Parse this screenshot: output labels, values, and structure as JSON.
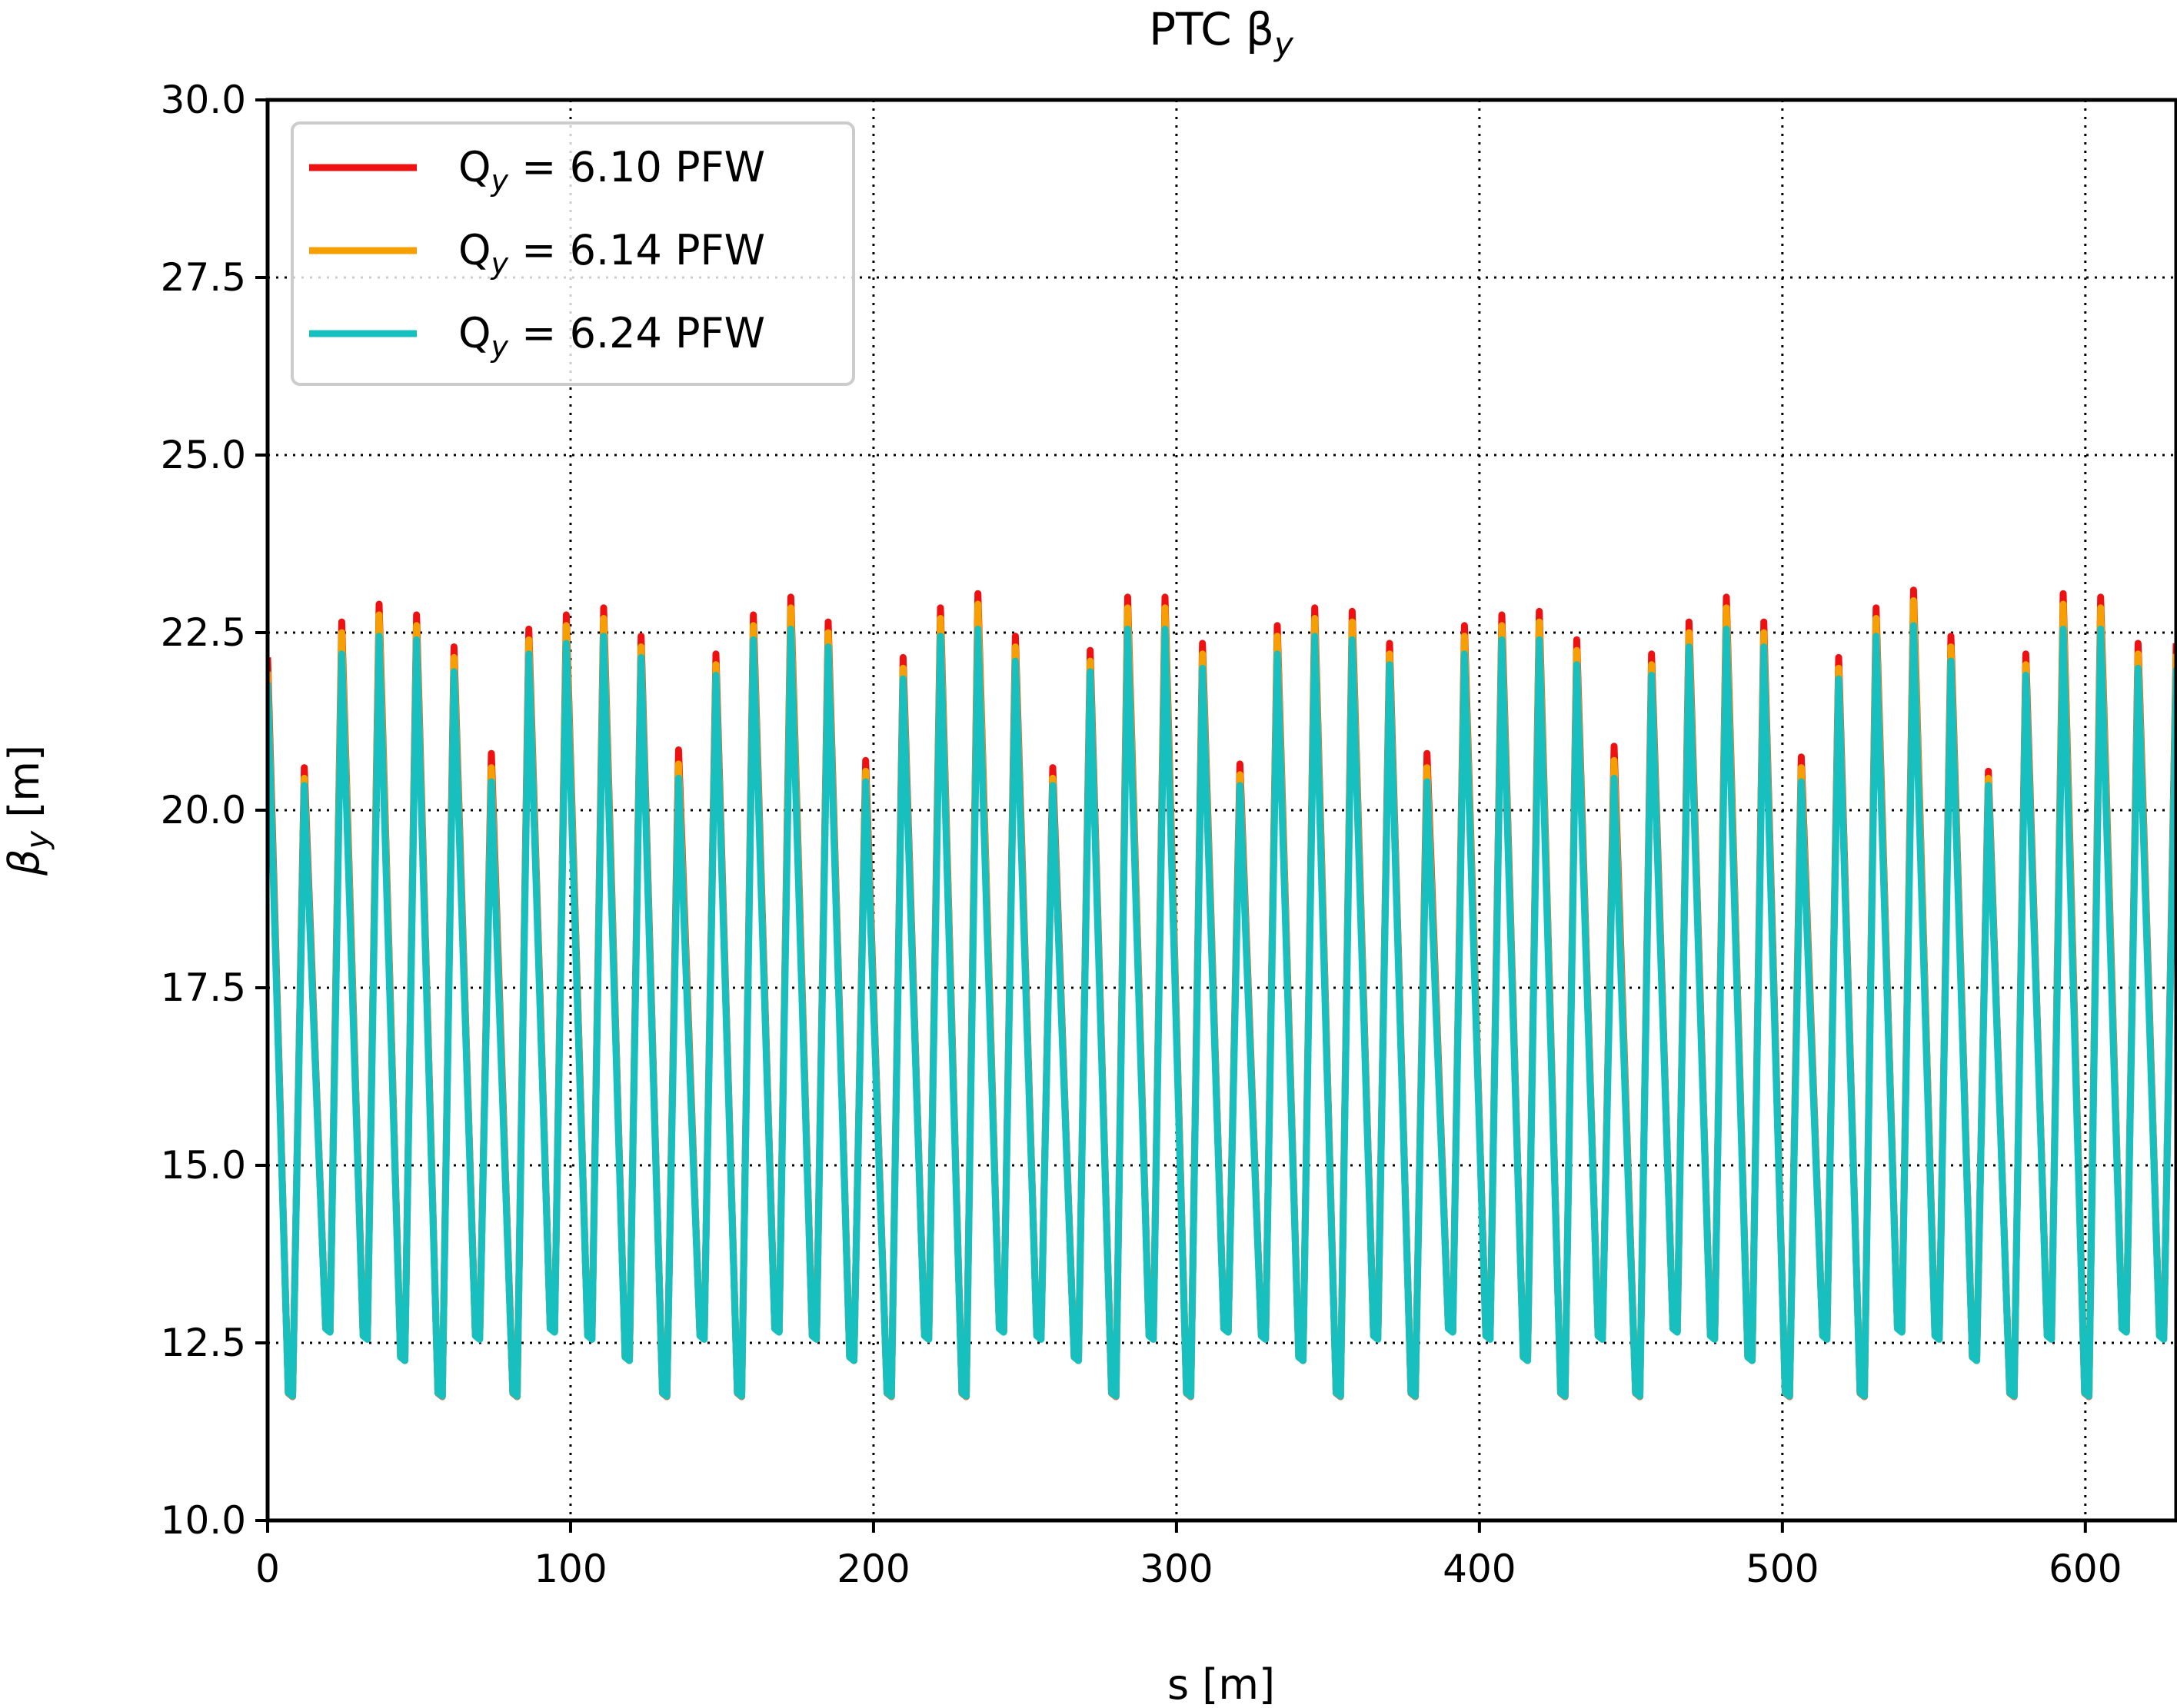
{
  "chart_data": {
    "type": "line",
    "title": "PTC β",
    "title_sub": "y",
    "xlabel": "s [m]",
    "ylabel": "β",
    "ylabel_sub": "y",
    "ylabel_unit": " [m]",
    "xlim": [
      0,
      630
    ],
    "ylim": [
      10.0,
      30.0
    ],
    "xticks": [
      0,
      100,
      200,
      300,
      400,
      500,
      600
    ],
    "yticks": [
      "10.0",
      "12.5",
      "15.0",
      "17.5",
      "20.0",
      "22.5",
      "25.0",
      "27.5",
      "30.0"
    ],
    "grid": true,
    "legend_position": "top-left",
    "period_s": 11.0,
    "min_beta": [
      11.8,
      12.7,
      12.6,
      12.3,
      11.8,
      12.6
    ],
    "max_beta_first": [
      22.0,
      20.4,
      22.1
    ],
    "series": [
      {
        "name": "Q",
        "name_sub": "y",
        "name_rest": " = 6.10 PFW",
        "color": "#ee1111",
        "scale": 1.02,
        "peaks": [
          22.15,
          20.6,
          22.65,
          22.9,
          22.75,
          22.3,
          20.8,
          22.55,
          22.75,
          22.85,
          22.45,
          20.85,
          22.2,
          22.75,
          23.0,
          22.65,
          20.7,
          22.15,
          22.85,
          23.05,
          22.45,
          20.6,
          22.25,
          23.0,
          23.0,
          22.35,
          20.65,
          22.6,
          22.85,
          22.8,
          22.35,
          20.8,
          22.6,
          22.75,
          22.8,
          22.4,
          20.9,
          22.2,
          22.65,
          23.0,
          22.65,
          20.75,
          22.15,
          22.85,
          23.1,
          22.45,
          20.55,
          22.2,
          23.05,
          23.0,
          22.35
        ]
      },
      {
        "name": "Q",
        "name_sub": "y",
        "name_rest": " = 6.14 PFW",
        "color": "#f5a000",
        "scale": 1.01,
        "peaks": [
          21.95,
          20.45,
          22.5,
          22.75,
          22.6,
          22.15,
          20.6,
          22.4,
          22.6,
          22.7,
          22.3,
          20.65,
          22.05,
          22.6,
          22.85,
          22.5,
          20.55,
          22.0,
          22.7,
          22.9,
          22.3,
          20.45,
          22.1,
          22.85,
          22.85,
          22.2,
          20.5,
          22.45,
          22.7,
          22.65,
          22.2,
          20.6,
          22.45,
          22.6,
          22.65,
          22.25,
          20.7,
          22.05,
          22.5,
          22.85,
          22.5,
          20.6,
          22.0,
          22.7,
          22.95,
          22.3,
          20.45,
          22.05,
          22.9,
          22.85,
          22.2
        ]
      },
      {
        "name": "Q",
        "name_sub": "y",
        "name_rest": " = 6.24 PFW",
        "color": "#17bfbf",
        "scale": 1.0,
        "peaks": [
          21.8,
          20.35,
          22.2,
          22.45,
          22.4,
          21.95,
          20.4,
          22.2,
          22.35,
          22.45,
          22.15,
          20.45,
          21.9,
          22.4,
          22.55,
          22.3,
          20.4,
          21.85,
          22.45,
          22.55,
          22.1,
          20.35,
          21.95,
          22.55,
          22.55,
          22.0,
          20.35,
          22.2,
          22.45,
          22.4,
          22.05,
          20.4,
          22.2,
          22.4,
          22.4,
          22.05,
          20.45,
          21.9,
          22.3,
          22.55,
          22.3,
          20.4,
          21.85,
          22.45,
          22.6,
          22.1,
          20.35,
          21.9,
          22.55,
          22.55,
          22.0
        ]
      }
    ]
  }
}
